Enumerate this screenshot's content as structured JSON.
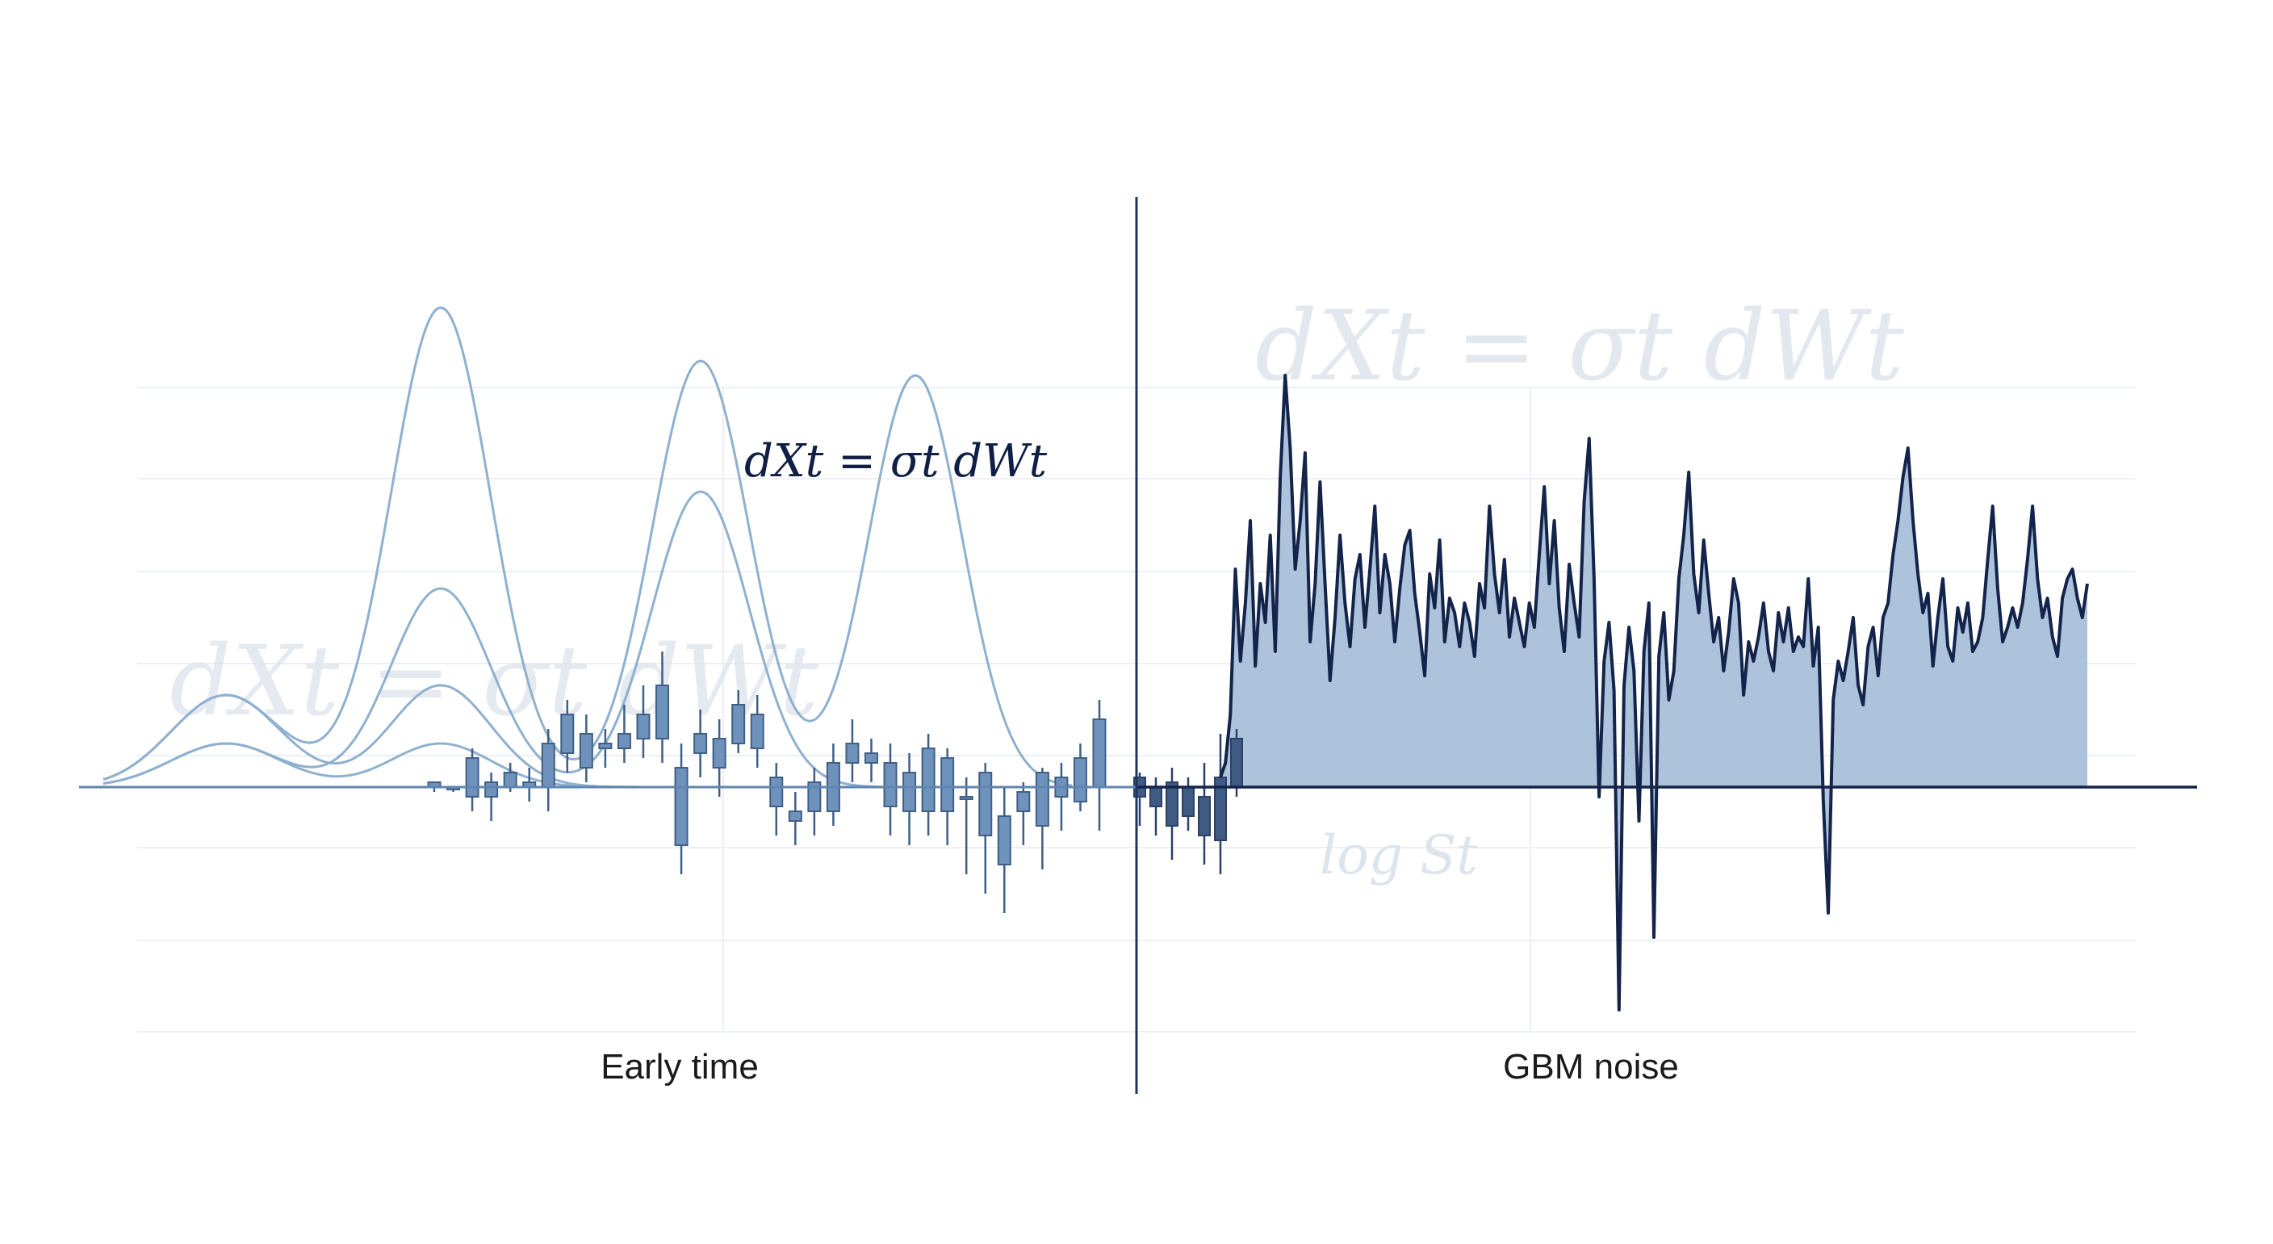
{
  "chart_data": {
    "type": "line",
    "title": "",
    "xlabel": "",
    "ylabel": "",
    "grid": true,
    "legend": "none",
    "panels": [
      {
        "name": "",
        "caption": "Early time",
        "kinds": [
          "density curves",
          "candlesticks"
        ],
        "density_curves": [
          {
            "peak_heights": [
              0.19,
              0.99,
              0.88,
              0.85
            ]
          },
          {
            "peak_heights": [
              0.09,
              0.41,
              0.61
            ]
          },
          {
            "peak_heights": [
              0.19,
              0.21
            ]
          },
          {
            "peak_heights": [
              0.09,
              0.09
            ]
          }
        ],
        "candles": [
          [
            0.0,
            0.01,
            -0.01,
            0.01
          ],
          [
            0.0,
            0.0,
            -0.01,
            0.0
          ],
          [
            -0.02,
            0.06,
            0.08,
            -0.05
          ],
          [
            -0.02,
            0.01,
            0.03,
            -0.07
          ],
          [
            0.0,
            0.03,
            0.05,
            -0.01
          ],
          [
            0.0,
            0.01,
            0.04,
            -0.03
          ],
          [
            0.0,
            0.09,
            0.12,
            -0.05
          ],
          [
            0.15,
            0.07,
            0.18,
            0.03
          ],
          [
            0.04,
            0.11,
            0.15,
            0.01
          ],
          [
            0.08,
            0.09,
            0.12,
            0.04
          ],
          [
            0.11,
            0.08,
            0.17,
            0.05
          ],
          [
            0.15,
            0.1,
            0.21,
            0.06
          ],
          [
            0.1,
            0.21,
            0.28,
            0.05
          ],
          [
            0.04,
            -0.12,
            0.09,
            -0.18
          ],
          [
            0.11,
            0.07,
            0.16,
            0.02
          ],
          [
            0.04,
            0.1,
            0.14,
            -0.02
          ],
          [
            0.17,
            0.09,
            0.2,
            0.07
          ],
          [
            0.08,
            0.15,
            0.19,
            0.04
          ],
          [
            0.02,
            -0.04,
            0.05,
            -0.1
          ],
          [
            -0.05,
            -0.07,
            -0.01,
            -0.12
          ],
          [
            -0.05,
            0.01,
            0.04,
            -0.1
          ],
          [
            -0.05,
            0.05,
            0.09,
            -0.08
          ],
          [
            0.05,
            0.09,
            0.14,
            0.01
          ],
          [
            0.05,
            0.07,
            0.1,
            0.01
          ],
          [
            -0.04,
            0.05,
            0.09,
            -0.1
          ],
          [
            -0.05,
            0.03,
            0.07,
            -0.12
          ],
          [
            0.08,
            -0.05,
            0.11,
            -0.1
          ],
          [
            -0.05,
            0.06,
            0.08,
            -0.12
          ],
          [
            -0.02,
            -0.02,
            0.02,
            -0.18
          ],
          [
            0.03,
            -0.1,
            0.05,
            -0.22
          ],
          [
            -0.16,
            -0.06,
            0.0,
            -0.26
          ],
          [
            -0.05,
            -0.01,
            0.01,
            -0.12
          ],
          [
            -0.08,
            0.03,
            0.04,
            -0.17
          ],
          [
            -0.02,
            0.02,
            0.05,
            -0.09
          ],
          [
            0.06,
            -0.03,
            0.09,
            -0.05
          ],
          [
            0.0,
            0.14,
            0.18,
            -0.09
          ]
        ]
      },
      {
        "name": "",
        "caption": "GBM noise",
        "kinds": [
          "candlesticks",
          "area line"
        ],
        "candles": [
          [
            0.02,
            -0.02,
            0.03,
            -0.08
          ],
          [
            0.0,
            -0.04,
            0.02,
            -0.1
          ],
          [
            0.01,
            -0.08,
            0.04,
            -0.15
          ],
          [
            0.0,
            -0.06,
            0.02,
            -0.09
          ],
          [
            -0.02,
            -0.1,
            0.05,
            -0.16
          ],
          [
            0.02,
            -0.11,
            0.11,
            -0.18
          ],
          [
            0.0,
            0.1,
            0.12,
            -0.02
          ]
        ],
        "series": [
          {
            "values": [
              0.02,
              0.05,
              0.15,
              0.45,
              0.26,
              0.38,
              0.55,
              0.25,
              0.42,
              0.34,
              0.52,
              0.28,
              0.64,
              0.85,
              0.7,
              0.45,
              0.55,
              0.69,
              0.3,
              0.42,
              0.63,
              0.42,
              0.22,
              0.35,
              0.52,
              0.38,
              0.29,
              0.43,
              0.48,
              0.33,
              0.45,
              0.58,
              0.36,
              0.48,
              0.42,
              0.3,
              0.41,
              0.5,
              0.53,
              0.4,
              0.32,
              0.23,
              0.44,
              0.37,
              0.51,
              0.3,
              0.39,
              0.36,
              0.29,
              0.38,
              0.34,
              0.27,
              0.42,
              0.37,
              0.58,
              0.44,
              0.36,
              0.47,
              0.31,
              0.39,
              0.34,
              0.29,
              0.38,
              0.33,
              0.48,
              0.62,
              0.42,
              0.55,
              0.37,
              0.28,
              0.46,
              0.38,
              0.31,
              0.59,
              0.72,
              0.43,
              -0.02,
              0.26,
              0.34,
              0.2,
              -0.46,
              0.21,
              0.33,
              0.24,
              -0.07,
              0.28,
              0.38,
              -0.31,
              0.27,
              0.36,
              0.18,
              0.24,
              0.43,
              0.52,
              0.65,
              0.44,
              0.36,
              0.51,
              0.4,
              0.3,
              0.35,
              0.24,
              0.32,
              0.43,
              0.38,
              0.19,
              0.3,
              0.26,
              0.31,
              0.38,
              0.28,
              0.24,
              0.36,
              0.3,
              0.37,
              0.28,
              0.31,
              0.29,
              0.43,
              0.25,
              0.33,
              -0.03,
              -0.26,
              0.18,
              0.26,
              0.22,
              0.28,
              0.35,
              0.21,
              0.17,
              0.29,
              0.33,
              0.23,
              0.35,
              0.38,
              0.48,
              0.55,
              0.64,
              0.7,
              0.55,
              0.44,
              0.36,
              0.4,
              0.25,
              0.35,
              0.43,
              0.29,
              0.26,
              0.37,
              0.32,
              0.38,
              0.28,
              0.3,
              0.35,
              0.47,
              0.58,
              0.41,
              0.3,
              0.33,
              0.37,
              0.33,
              0.38,
              0.47,
              0.58,
              0.43,
              0.35,
              0.39,
              0.31,
              0.27,
              0.39,
              0.43,
              0.45,
              0.39,
              0.35,
              0.42
            ]
          }
        ]
      }
    ],
    "candle_fields": [
      "open",
      "close",
      "high",
      "low"
    ],
    "annotations": [
      {
        "text": "dXt = σt  dWt",
        "style": "primary"
      },
      {
        "text": "dXt = σt  dWt",
        "style": "watermark"
      },
      {
        "text": "dXt = σt  dWt",
        "style": "watermark"
      },
      {
        "text": "log St",
        "style": "watermark"
      }
    ]
  },
  "colors": {
    "baseline_left": "#5f86b0",
    "baseline_right": "#14244a",
    "divider": "#1e3461",
    "curve": "#8fb0cf",
    "candle_fill": "#6f92bd",
    "candle_stroke": "#3f5f86",
    "candle_dark": "#3f5a83",
    "line": "#13234a",
    "area": "#a9bfd9",
    "grid": "#eceff3",
    "watermark": "#dde4ec"
  }
}
